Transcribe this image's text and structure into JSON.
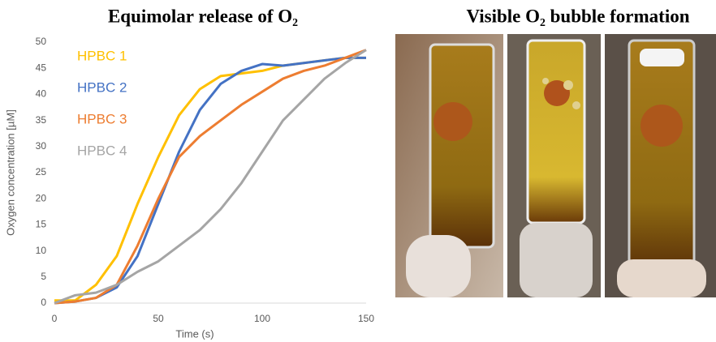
{
  "chart_data": {
    "type": "line",
    "title": "Equimolar release of O₂",
    "x_label": "Time (s)",
    "y_label": "Oxygen concentration [µM]",
    "x": [
      0,
      10,
      20,
      30,
      40,
      50,
      60,
      70,
      80,
      90,
      100,
      110,
      120,
      130,
      140,
      150
    ],
    "series": [
      {
        "name": "HPBC 1",
        "color": "#ffc000",
        "values": [
          0.5,
          0.5,
          3.5,
          9,
          19,
          28,
          36,
          41,
          43.5,
          44,
          44.5,
          45.5,
          46,
          46.5,
          47,
          47
        ]
      },
      {
        "name": "HPBC 2",
        "color": "#4472c4",
        "values": [
          0,
          0.3,
          1,
          3,
          9,
          19,
          29,
          37,
          42,
          44.5,
          45.8,
          45.5,
          46,
          46.5,
          47,
          47
        ]
      },
      {
        "name": "HPBC 3",
        "color": "#ed7d31",
        "values": [
          0,
          0.3,
          1,
          3.5,
          11,
          20,
          28,
          32,
          35,
          38,
          40.5,
          43,
          44.5,
          45.5,
          47,
          48.5
        ]
      },
      {
        "name": "HPBC 4",
        "color": "#a5a5a5",
        "values": [
          0,
          1.5,
          2,
          3.5,
          6,
          8,
          11,
          14,
          18,
          23,
          29,
          35,
          39,
          43,
          46,
          48.5
        ]
      }
    ],
    "xlim": [
      0,
      150
    ],
    "xticks": [
      0,
      50,
      100,
      150
    ],
    "ylim": [
      0,
      50
    ],
    "yticks": [
      0,
      5,
      10,
      15,
      20,
      25,
      30,
      35,
      40,
      45,
      50
    ]
  },
  "photo_panel": {
    "title": "Visible O₂ bubble formation"
  }
}
